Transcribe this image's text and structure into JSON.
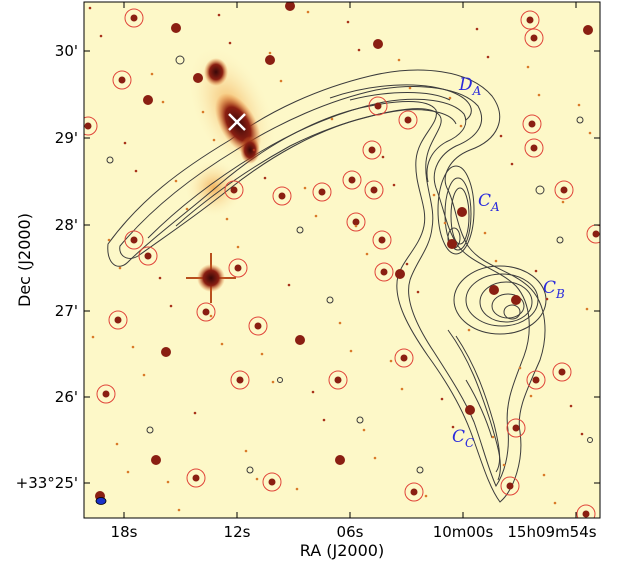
{
  "colors": {
    "background": "#fdf8c8",
    "contour": "#3b3b3b",
    "circle": "#e0453a",
    "source": "#8a1f12",
    "label": "#2a2adc",
    "beam": "#1a32c8"
  },
  "axes": {
    "xlabel": "RA (J2000)",
    "ylabel": "Dec (J2000)",
    "xticks": [
      "18s",
      "12s",
      "06s",
      "10m00s",
      "15h09m54s"
    ],
    "yticks": [
      "30'",
      "29'",
      "28'",
      "27'",
      "26'",
      "+33°25'"
    ]
  },
  "labels": [
    {
      "main": "D",
      "sub": "A"
    },
    {
      "main": "C",
      "sub": "A"
    },
    {
      "main": "C",
      "sub": "B"
    },
    {
      "main": "C",
      "sub": "C"
    }
  ],
  "marker": "cross-icon"
}
